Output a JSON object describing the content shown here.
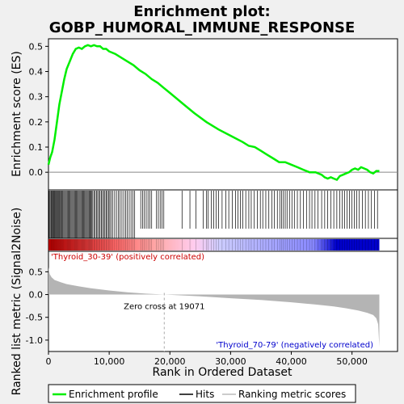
{
  "chart_data": {
    "type": "line",
    "title_line1": "Enrichment plot:",
    "title_line2": "GOBP_HUMORAL_IMMUNE_RESPONSE",
    "top_panel": {
      "ylabel": "Enrichment score (ES)",
      "ylim": [
        -0.07,
        0.53
      ],
      "yticks": [
        0.0,
        0.1,
        0.2,
        0.3,
        0.4,
        0.5
      ],
      "ytick_labels": [
        "0.0",
        "0.1",
        "0.2",
        "0.3",
        "0.4",
        "0.5"
      ],
      "series": [
        {
          "name": "Enrichment profile",
          "color": "#00ee00",
          "x": [
            0,
            300,
            600,
            1000,
            1400,
            1800,
            2200,
            2600,
            3000,
            3500,
            4000,
            4500,
            5000,
            5500,
            6000,
            6500,
            7000,
            7500,
            8000,
            8500,
            9000,
            9500,
            10000,
            11000,
            12000,
            13000,
            14000,
            15000,
            16000,
            17000,
            18000,
            19000,
            20000,
            22000,
            24000,
            26000,
            28000,
            30000,
            32000,
            33000,
            34000,
            35000,
            36000,
            37000,
            38000,
            39000,
            40000,
            41000,
            42000,
            43000,
            44000,
            45000,
            45500,
            46000,
            46500,
            47000,
            47500,
            48000,
            48500,
            49000,
            49500,
            50000,
            50500,
            51000,
            51500,
            52000,
            52500,
            53000,
            53500,
            54000,
            54500
          ],
          "y": [
            0.03,
            0.06,
            0.08,
            0.13,
            0.2,
            0.27,
            0.32,
            0.37,
            0.41,
            0.44,
            0.47,
            0.49,
            0.495,
            0.49,
            0.5,
            0.505,
            0.5,
            0.505,
            0.5,
            0.5,
            0.49,
            0.49,
            0.48,
            0.47,
            0.455,
            0.44,
            0.425,
            0.405,
            0.39,
            0.37,
            0.355,
            0.335,
            0.315,
            0.275,
            0.235,
            0.2,
            0.17,
            0.145,
            0.12,
            0.105,
            0.1,
            0.085,
            0.07,
            0.055,
            0.04,
            0.04,
            0.03,
            0.02,
            0.01,
            0.0,
            0.0,
            -0.01,
            -0.02,
            -0.025,
            -0.02,
            -0.025,
            -0.03,
            -0.015,
            -0.01,
            -0.005,
            0.0,
            0.01,
            0.015,
            0.01,
            0.02,
            0.015,
            0.01,
            0.0,
            -0.005,
            0.005,
            0.005
          ]
        }
      ]
    },
    "hits_panel": {
      "dense_until": 14500,
      "hits": [
        100,
        250,
        400,
        520,
        650,
        780,
        900,
        1020,
        1150,
        1280,
        1400,
        1520,
        1650,
        1780,
        1900,
        2050,
        2200,
        2350,
        2500,
        2650,
        2800,
        2950,
        3100,
        3250,
        3400,
        3550,
        3700,
        3850,
        4000,
        4150,
        4300,
        4450,
        4600,
        4750,
        4900,
        5050,
        5200,
        5350,
        5500,
        5650,
        5800,
        5950,
        6100,
        6250,
        6400,
        6550,
        6700,
        6850,
        7000,
        7150,
        7300,
        7500,
        7700,
        7900,
        8100,
        8300,
        8500,
        8700,
        8900,
        9100,
        9300,
        9500,
        9700,
        9900,
        10100,
        10300,
        10600,
        10900,
        11200,
        11500,
        11800,
        12100,
        12400,
        12700,
        13000,
        13300,
        13600,
        13900,
        14200,
        15200,
        15500,
        15800,
        16100,
        16400,
        16700,
        17000,
        17800,
        18100,
        18400,
        18700,
        19000,
        22000,
        23300,
        24300,
        25500,
        26000,
        26300,
        26800,
        27200,
        27600,
        28000,
        28600,
        29200,
        29700,
        30300,
        30800,
        31200,
        31600,
        32000,
        32500,
        33000,
        33400,
        33900,
        34400,
        34900,
        35300,
        35800,
        36300,
        36800,
        37200,
        37700,
        38100,
        38400,
        38700,
        39000,
        39300,
        39700,
        40100,
        40500,
        41000,
        41500,
        42000,
        42500,
        43000,
        43400,
        43900,
        44400,
        45000,
        45500,
        46000,
        46500,
        47000,
        47500,
        48000,
        48400,
        48800,
        49200,
        49600,
        50000,
        50400,
        50800,
        51200,
        51700,
        52200,
        52700,
        53200,
        53700,
        54200
      ]
    },
    "color_bar": {
      "stops": [
        "#cc0000",
        "#ff6666",
        "#ffaaaa",
        "#ffccee",
        "#ccccff",
        "#8888ff",
        "#0000cc"
      ]
    },
    "metric_panel": {
      "ylabel": "Ranked list metric (Signal2Noise)",
      "xlabel": "Rank in Ordered Dataset",
      "ylim": [
        -1.25,
        0.95
      ],
      "yticks": [
        -1.0,
        -0.5,
        0.0,
        0.5
      ],
      "ytick_labels": [
        "-1.0",
        "-0.5",
        "0.0",
        "0.5"
      ],
      "xlim": [
        0,
        57500
      ],
      "xticks": [
        0,
        10000,
        20000,
        30000,
        40000,
        50000
      ],
      "xtick_labels": [
        "0",
        "10,000",
        "20,000",
        "30,000",
        "40,000",
        "50,000"
      ],
      "zero_cross": 19071,
      "zero_cross_label": "Zero cross at 19071",
      "pos_label": "'Thyroid_30-39' (positively correlated)",
      "neg_label": "'Thyroid_70-79' (negatively correlated)",
      "pos_color": "#cc0000",
      "neg_color": "#0000cc",
      "metric_x": [
        0,
        200,
        500,
        1000,
        2000,
        3000,
        5000,
        7000,
        10000,
        13000,
        16000,
        19071,
        25000,
        30000,
        35000,
        40000,
        44000,
        47000,
        49000,
        51000,
        52500,
        53500,
        54000,
        54300,
        54500
      ],
      "metric_y": [
        0.6,
        0.45,
        0.38,
        0.32,
        0.27,
        0.23,
        0.18,
        0.14,
        0.09,
        0.05,
        0.02,
        0.0,
        -0.04,
        -0.08,
        -0.12,
        -0.17,
        -0.22,
        -0.26,
        -0.3,
        -0.35,
        -0.4,
        -0.45,
        -0.52,
        -0.65,
        -1.15
      ]
    },
    "legend": [
      {
        "label": "Enrichment profile",
        "color": "#00ee00"
      },
      {
        "label": "Hits",
        "color": "#000000"
      },
      {
        "label": "Ranking metric scores",
        "color": "#bbbbbb"
      }
    ]
  }
}
